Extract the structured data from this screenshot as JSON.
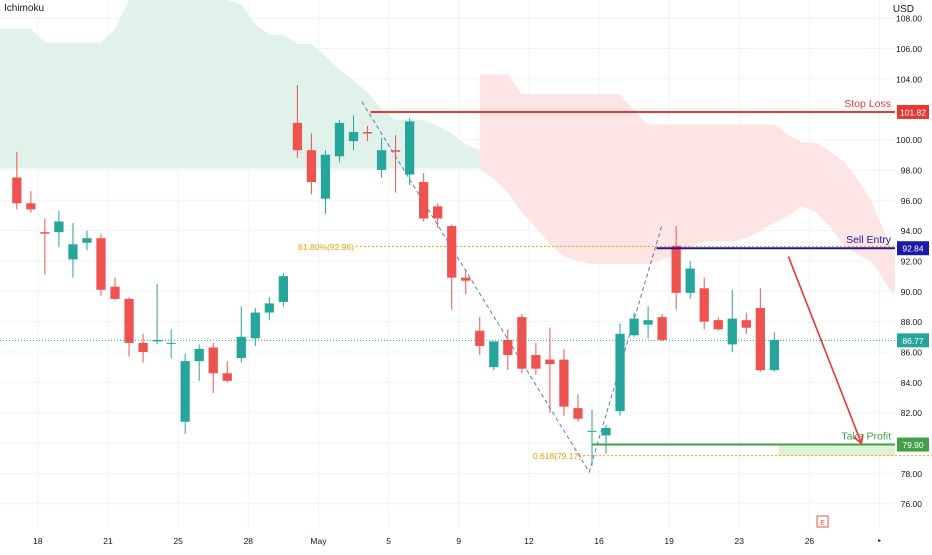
{
  "header": {
    "indicator": "Ichimoku",
    "currency": "USD"
  },
  "colors": {
    "up": "#26a69a",
    "down": "#ef5350",
    "cloud_bull": "#e0f2e9",
    "cloud_bear": "#fde5e5",
    "stop": "#e53935",
    "entry": "#1a1aa6",
    "target": "#43a047",
    "fib": "#f59c00",
    "arrow": "#e53935",
    "zigzag": "#5b7bb8",
    "grid": "#f0f3fa",
    "text": "#131722",
    "price_line": "#26a69a"
  },
  "chart_data": {
    "type": "candlestick",
    "ylim": [
      74.4,
      109.2
    ],
    "x_range": [
      -1.2,
      62.6
    ],
    "y_ticks": [
      "76.00",
      "78.00",
      "80.00",
      "82.00",
      "84.00",
      "86.00",
      "88.00",
      "90.00",
      "92.00",
      "94.00",
      "96.00",
      "98.00",
      "100.00",
      "102.00",
      "104.00",
      "106.00",
      "108.00"
    ],
    "x_ticks": [
      {
        "label": "18",
        "i": 1.5
      },
      {
        "label": "21",
        "i": 6.5
      },
      {
        "label": "25",
        "i": 11.5
      },
      {
        "label": "28",
        "i": 16.5
      },
      {
        "label": "May",
        "i": 21.5
      },
      {
        "label": "5",
        "i": 26.5
      },
      {
        "label": "9",
        "i": 31.5
      },
      {
        "label": "12",
        "i": 36.5
      },
      {
        "label": "16",
        "i": 41.5
      },
      {
        "label": "19",
        "i": 46.5
      },
      {
        "label": "23",
        "i": 51.5
      },
      {
        "label": "26",
        "i": 56.5
      },
      {
        "label": "‣",
        "i": 61.5
      }
    ],
    "candles": [
      {
        "o": 97.5,
        "h": 99.2,
        "l": 95.4,
        "c": 95.8
      },
      {
        "o": 95.8,
        "h": 96.6,
        "l": 95.2,
        "c": 95.4
      },
      {
        "o": 93.9,
        "h": 94.8,
        "l": 91.1,
        "c": 93.8
      },
      {
        "o": 93.9,
        "h": 95.3,
        "l": 92.9,
        "c": 94.6
      },
      {
        "o": 92.1,
        "h": 94.5,
        "l": 90.9,
        "c": 93.1
      },
      {
        "o": 93.2,
        "h": 94.0,
        "l": 92.7,
        "c": 93.5
      },
      {
        "o": 93.5,
        "h": 93.8,
        "l": 89.7,
        "c": 90.1
      },
      {
        "o": 90.3,
        "h": 90.9,
        "l": 89.4,
        "c": 89.5
      },
      {
        "o": 89.5,
        "h": 89.6,
        "l": 85.7,
        "c": 86.6
      },
      {
        "o": 86.6,
        "h": 87.2,
        "l": 85.3,
        "c": 86.0
      },
      {
        "o": 86.7,
        "h": 90.5,
        "l": 86.5,
        "c": 86.8
      },
      {
        "o": 86.6,
        "h": 87.5,
        "l": 85.6,
        "c": 86.6
      },
      {
        "o": 81.4,
        "h": 85.9,
        "l": 80.6,
        "c": 85.4
      },
      {
        "o": 85.4,
        "h": 86.5,
        "l": 84.1,
        "c": 86.2
      },
      {
        "o": 86.3,
        "h": 86.6,
        "l": 83.3,
        "c": 84.6
      },
      {
        "o": 84.6,
        "h": 85.4,
        "l": 84.0,
        "c": 84.1
      },
      {
        "o": 85.6,
        "h": 89.0,
        "l": 85.3,
        "c": 87.0
      },
      {
        "o": 86.9,
        "h": 88.9,
        "l": 86.4,
        "c": 88.6
      },
      {
        "o": 88.6,
        "h": 89.6,
        "l": 88.1,
        "c": 89.2
      },
      {
        "o": 89.3,
        "h": 91.2,
        "l": 89.0,
        "c": 91.0
      },
      {
        "o": 101.1,
        "h": 103.6,
        "l": 98.8,
        "c": 99.3
      },
      {
        "o": 99.3,
        "h": 100.4,
        "l": 96.4,
        "c": 97.2
      },
      {
        "o": 96.1,
        "h": 99.3,
        "l": 95.1,
        "c": 99.0
      },
      {
        "o": 98.9,
        "h": 101.3,
        "l": 98.5,
        "c": 101.1
      },
      {
        "o": 99.9,
        "h": 101.6,
        "l": 99.3,
        "c": 100.5
      },
      {
        "o": 100.5,
        "h": 100.9,
        "l": 99.9,
        "c": 100.4
      },
      {
        "o": 98.0,
        "h": 100.1,
        "l": 97.5,
        "c": 99.3
      },
      {
        "o": 99.3,
        "h": 100.3,
        "l": 96.5,
        "c": 99.2
      },
      {
        "o": 97.7,
        "h": 101.4,
        "l": 97.0,
        "c": 101.2
      },
      {
        "o": 97.2,
        "h": 97.8,
        "l": 94.6,
        "c": 94.8
      },
      {
        "o": 95.6,
        "h": 95.8,
        "l": 94.2,
        "c": 94.8
      },
      {
        "o": 94.3,
        "h": 94.4,
        "l": 88.8,
        "c": 90.9
      },
      {
        "o": 90.9,
        "h": 91.4,
        "l": 89.8,
        "c": 90.7
      },
      {
        "o": 87.4,
        "h": 88.3,
        "l": 85.8,
        "c": 86.4
      },
      {
        "o": 85.0,
        "h": 86.4,
        "l": 84.8,
        "c": 86.7
      },
      {
        "o": 86.8,
        "h": 87.5,
        "l": 84.8,
        "c": 85.8
      },
      {
        "o": 88.3,
        "h": 88.5,
        "l": 84.6,
        "c": 84.9
      },
      {
        "o": 85.8,
        "h": 86.6,
        "l": 84.5,
        "c": 84.9
      },
      {
        "o": 85.5,
        "h": 87.6,
        "l": 82.0,
        "c": 85.2
      },
      {
        "o": 85.5,
        "h": 86.2,
        "l": 81.8,
        "c": 82.4
      },
      {
        "o": 82.3,
        "h": 83.2,
        "l": 81.4,
        "c": 81.6
      },
      {
        "o": 80.8,
        "h": 82.2,
        "l": 78.5,
        "c": 80.8
      },
      {
        "o": 80.5,
        "h": 81.2,
        "l": 79.3,
        "c": 81.0
      },
      {
        "o": 82.1,
        "h": 87.9,
        "l": 81.8,
        "c": 87.2
      },
      {
        "o": 87.1,
        "h": 88.6,
        "l": 87.0,
        "c": 88.2
      },
      {
        "o": 87.8,
        "h": 89.0,
        "l": 86.9,
        "c": 88.1
      },
      {
        "o": 88.3,
        "h": 88.5,
        "l": 86.7,
        "c": 86.8
      },
      {
        "o": 93.0,
        "h": 94.3,
        "l": 88.8,
        "c": 89.9
      },
      {
        "o": 89.9,
        "h": 92.0,
        "l": 89.5,
        "c": 91.5
      },
      {
        "o": 90.2,
        "h": 90.9,
        "l": 87.5,
        "c": 88.0
      },
      {
        "o": 88.1,
        "h": 88.3,
        "l": 87.4,
        "c": 87.5
      },
      {
        "o": 86.5,
        "h": 90.1,
        "l": 86.0,
        "c": 88.2
      },
      {
        "o": 88.1,
        "h": 88.6,
        "l": 87.2,
        "c": 87.6
      },
      {
        "o": 88.9,
        "h": 90.2,
        "l": 84.7,
        "c": 84.8
      },
      {
        "o": 84.8,
        "h": 87.3,
        "l": 84.7,
        "c": 86.8
      }
    ],
    "cloud_bull": {
      "upper": [
        [
          -1.2,
          107.3
        ],
        [
          0,
          107.3
        ],
        [
          1,
          107.3
        ],
        [
          2,
          106.4
        ],
        [
          3,
          106.4
        ],
        [
          4,
          106.4
        ],
        [
          5,
          106.4
        ],
        [
          6,
          106.4
        ],
        [
          7,
          107.3
        ],
        [
          8,
          109.2
        ],
        [
          15,
          109.2
        ],
        [
          16,
          108.9
        ],
        [
          17,
          107.6
        ],
        [
          18,
          106.9
        ],
        [
          19,
          106.9
        ],
        [
          20,
          106.3
        ],
        [
          21,
          106.3
        ],
        [
          22,
          105.5
        ],
        [
          23,
          104.6
        ],
        [
          24,
          103.9
        ],
        [
          25,
          103.1
        ],
        [
          26,
          102.0
        ],
        [
          27,
          101.3
        ],
        [
          28,
          101.3
        ],
        [
          29,
          101.3
        ],
        [
          30,
          100.9
        ],
        [
          31,
          100.4
        ],
        [
          32,
          99.7
        ],
        [
          33,
          99.3
        ]
      ],
      "lower": [
        [
          -1.2,
          98.1
        ],
        [
          33,
          98.1
        ]
      ]
    },
    "cloud_bear": {
      "upper": [
        [
          33,
          104.3
        ],
        [
          34,
          104.3
        ],
        [
          35,
          104.3
        ],
        [
          36,
          103.0
        ],
        [
          37,
          103.0
        ],
        [
          38,
          103.0
        ],
        [
          39,
          103.0
        ],
        [
          40,
          103.0
        ],
        [
          41,
          103.0
        ],
        [
          42,
          103.0
        ],
        [
          43,
          103.0
        ],
        [
          44,
          101.9
        ],
        [
          45,
          101.0
        ],
        [
          46,
          101.0
        ],
        [
          47,
          101.0
        ],
        [
          48,
          101.0
        ],
        [
          49,
          101.0
        ],
        [
          50,
          101.0
        ],
        [
          51,
          101.0
        ],
        [
          52,
          101.0
        ],
        [
          53,
          101.0
        ],
        [
          54,
          101.0
        ],
        [
          55,
          100.3
        ],
        [
          56,
          99.8
        ],
        [
          57,
          99.8
        ],
        [
          58,
          99.2
        ],
        [
          59,
          98.5
        ],
        [
          60,
          97.3
        ],
        [
          61,
          95.8
        ],
        [
          62,
          93.5
        ],
        [
          62.6,
          92.4
        ]
      ],
      "lower": [
        [
          33,
          98.1
        ],
        [
          34,
          97.4
        ],
        [
          35,
          96.5
        ],
        [
          36,
          95.2
        ],
        [
          37,
          94.2
        ],
        [
          38,
          93.1
        ],
        [
          39,
          92.3
        ],
        [
          40,
          92.0
        ],
        [
          41,
          91.8
        ],
        [
          42,
          91.8
        ],
        [
          43,
          91.8
        ],
        [
          44,
          91.8
        ],
        [
          45,
          91.8
        ],
        [
          46,
          92.1
        ],
        [
          47,
          92.4
        ],
        [
          48,
          92.9
        ],
        [
          49,
          93.3
        ],
        [
          50,
          93.3
        ],
        [
          51,
          93.3
        ],
        [
          52,
          93.5
        ],
        [
          53,
          94.0
        ],
        [
          54,
          94.5
        ],
        [
          55,
          95.0
        ],
        [
          56,
          95.6
        ],
        [
          57,
          95.2
        ],
        [
          58,
          94.2
        ],
        [
          59,
          93.0
        ],
        [
          60,
          92.4
        ],
        [
          61,
          91.9
        ],
        [
          62,
          90.4
        ],
        [
          62.6,
          89.8
        ]
      ]
    },
    "zigzag": [
      [
        24.6,
        102.5
      ],
      [
        40.8,
        78.1
      ],
      [
        46.0,
        94.4
      ]
    ],
    "fib_levels": [
      {
        "label": "61.80%(92.96)",
        "price": 92.96,
        "x0": 24.6
      },
      {
        "label": "0.618(79.17)",
        "price": 79.17,
        "x0": 40.8
      }
    ],
    "take_profit_zone": {
      "x0": 54.3,
      "x1": 62.6,
      "lo": 79.17,
      "hi": 79.9
    },
    "trade_arrow": {
      "from": [
        55.0,
        92.3
      ],
      "to": [
        60.2,
        80.0
      ]
    },
    "current_price": {
      "price": 86.77
    },
    "levels": [
      {
        "name": "Stop Loss",
        "price": 101.82,
        "price_label": "101.82",
        "x0": 25.2,
        "color_key": "stop"
      },
      {
        "name": "Sell Entry",
        "price": 92.84,
        "price_label": "92.84",
        "x0": 45.6,
        "color_key": "entry"
      },
      {
        "name": "Take Profit",
        "price": 79.9,
        "price_label": "79.90",
        "x0": 41.0,
        "color_key": "target"
      }
    ],
    "current_price_label": "86.77",
    "footer_badge": "E"
  }
}
